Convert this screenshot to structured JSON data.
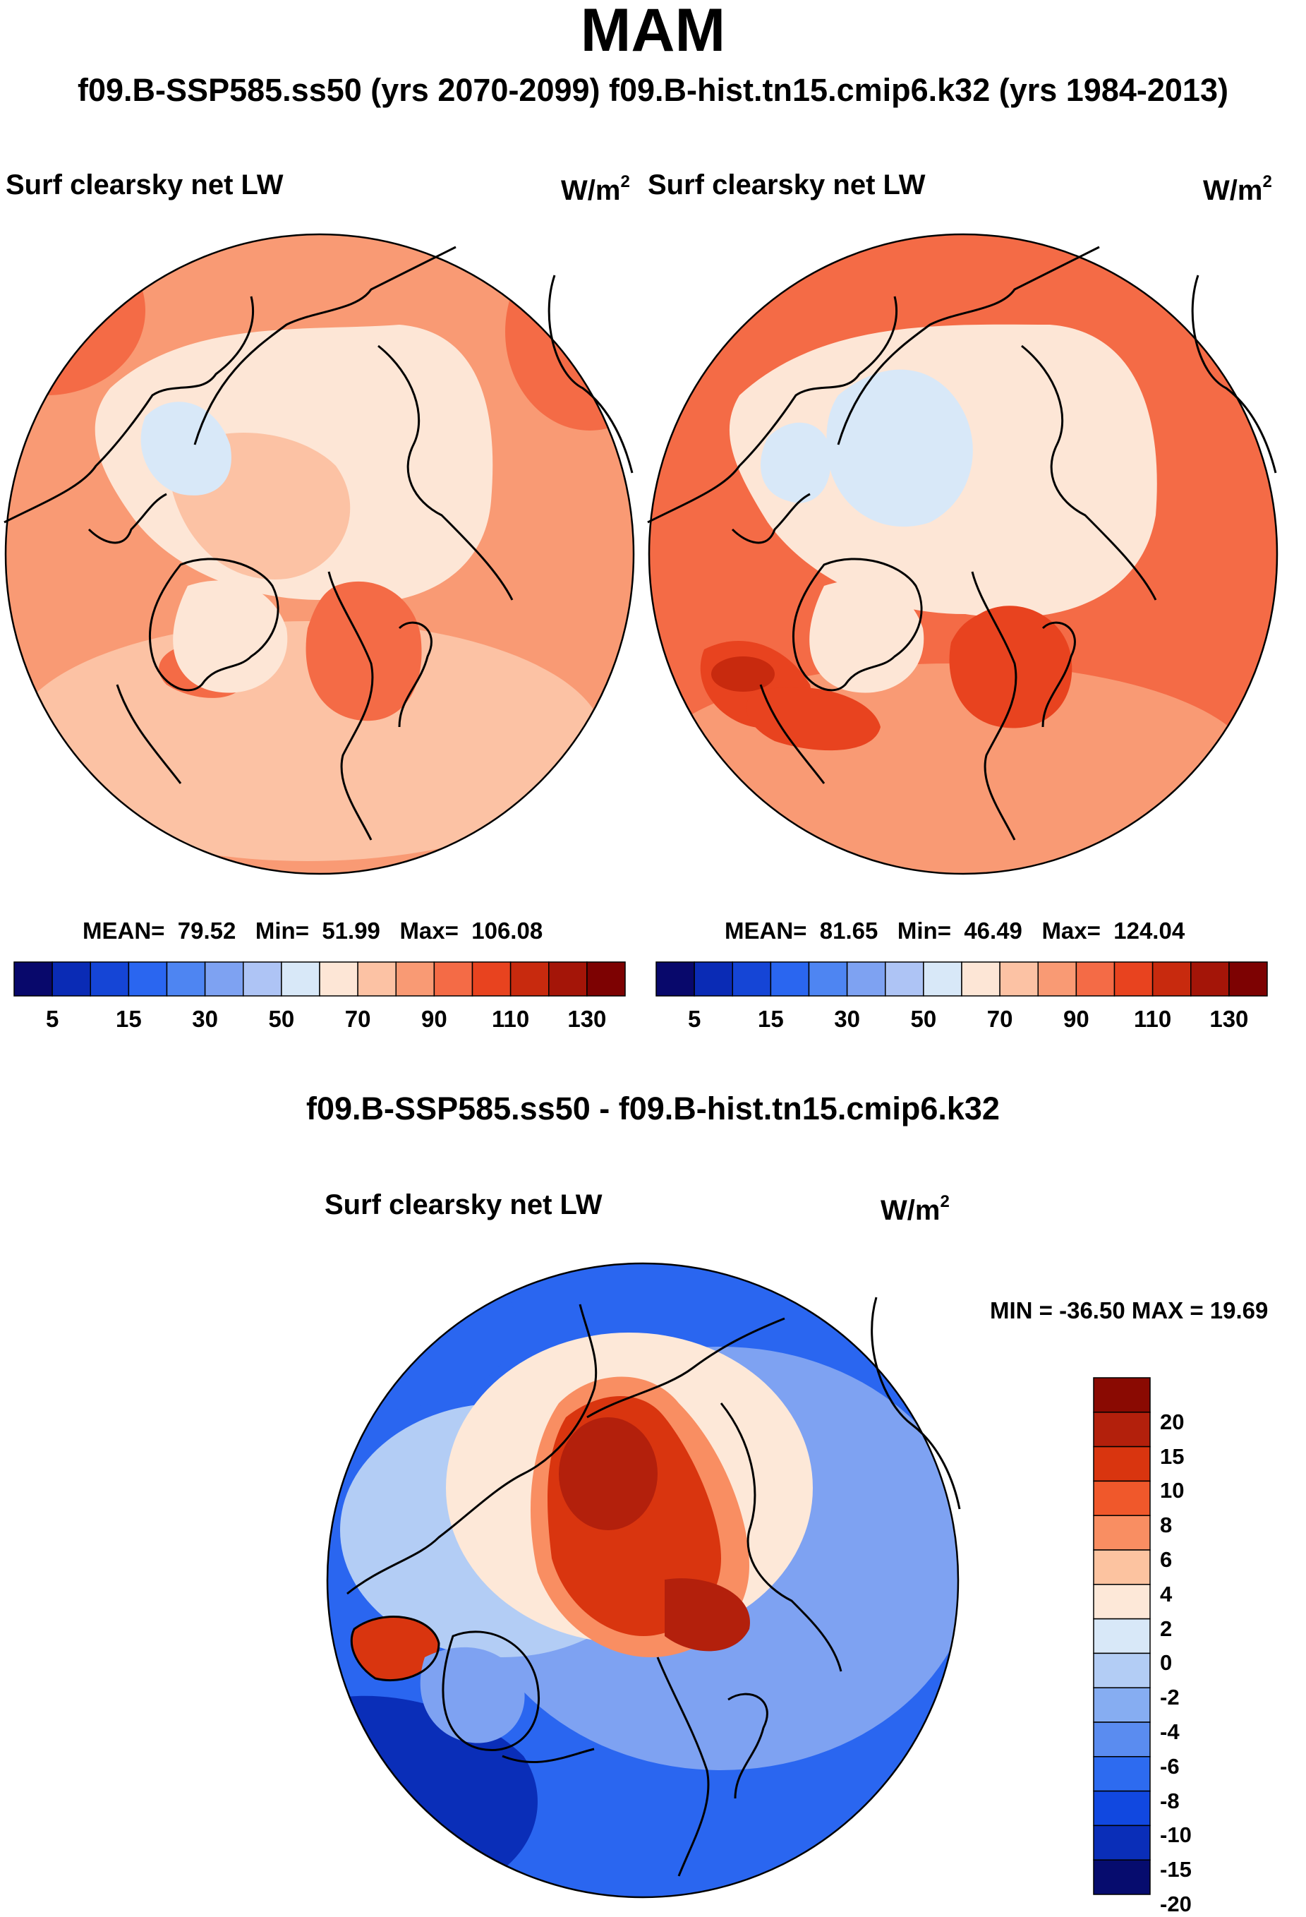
{
  "season": "MAM",
  "subtitle": "f09.B-SSP585.ss50 (yrs 2070-2099)  f09.B-hist.tn15.cmip6.k32 (yrs 1984-2013)",
  "left_panel": {
    "title": "Surf clearsky net LW",
    "units_base": "W/m",
    "units_exp": "2",
    "mean_label": "MEAN=",
    "mean": "79.52",
    "min_label": "Min=",
    "min": "51.99",
    "max_label": "Max=",
    "max": "106.08"
  },
  "right_panel": {
    "title": "Surf clearsky net LW",
    "units_base": "W/m",
    "units_exp": "2",
    "mean_label": "MEAN=",
    "mean": "81.65",
    "min_label": "Min=",
    "min": "46.49",
    "max_label": "Max=",
    "max": "124.04"
  },
  "abs_colorbar": {
    "colors": [
      "#08086b",
      "#0a2bb5",
      "#1545d6",
      "#2a66f0",
      "#4e85f2",
      "#7ea2f2",
      "#aec4f5",
      "#d8e8f8",
      "#fde6d6",
      "#fcc2a4",
      "#f99a74",
      "#f46b46",
      "#e8431f",
      "#c82a0e",
      "#a41508",
      "#7d0202"
    ],
    "ticks": [
      "5",
      "15",
      "30",
      "50",
      "70",
      "90",
      "110",
      "130"
    ]
  },
  "diff_title": "f09.B-SSP585.ss50 - f09.B-hist.tn15.cmip6.k32",
  "diff_panel": {
    "title": "Surf clearsky net LW",
    "units_base": "W/m",
    "units_exp": "2",
    "minmax": "MIN = -36.50 MAX =  19.69"
  },
  "diff_colorbar": {
    "colors_top_to_bottom": [
      "#8a0a02",
      "#b3200c",
      "#d9350f",
      "#f0582b",
      "#f98e62",
      "#fcc3a0",
      "#fde8d8",
      "#d8e8f8",
      "#b3cdf5",
      "#86adf2",
      "#5a8cf0",
      "#2d6bf0",
      "#1148e0",
      "#0a2eb8",
      "#060c6e"
    ],
    "ticks": [
      "20",
      "15",
      "10",
      "8",
      "6",
      "4",
      "2",
      "0",
      "-2",
      "-4",
      "-6",
      "-8",
      "-10",
      "-15",
      "-20"
    ]
  },
  "map_colors": {
    "ocean_light": "#fcc2a4",
    "ocean_mid": "#f99a74",
    "ocean_deep": "#f46b46",
    "ice_pale": "#fde6d6",
    "ice_blue": "#d8e8f8",
    "hot": "#e8431f",
    "hotter": "#c82a0e",
    "diff_blue": "#2a66f0",
    "diff_blue_light": "#7ea2f2",
    "diff_blue_pale": "#b3cdf5",
    "diff_dark": "#0a2eb8",
    "diff_red": "#d9350f",
    "diff_red_dark": "#b3200c",
    "diff_orange": "#f98e62",
    "diff_pale": "#fde8d8",
    "coast": "#000000"
  }
}
